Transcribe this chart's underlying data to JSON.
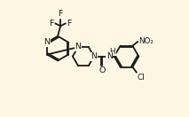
{
  "background_color": "#fdf6e3",
  "line_color": "#1a1a1a",
  "line_width": 1.3,
  "font_size": 6.8,
  "figsize": [
    2.13,
    1.32
  ],
  "dpi": 100,
  "xlim": [
    -0.05,
    1.05
  ],
  "ylim": [
    -0.05,
    1.05
  ]
}
